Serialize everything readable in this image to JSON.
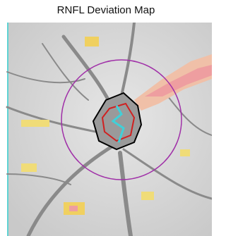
{
  "title": "RNFL Deviation Map"
}
